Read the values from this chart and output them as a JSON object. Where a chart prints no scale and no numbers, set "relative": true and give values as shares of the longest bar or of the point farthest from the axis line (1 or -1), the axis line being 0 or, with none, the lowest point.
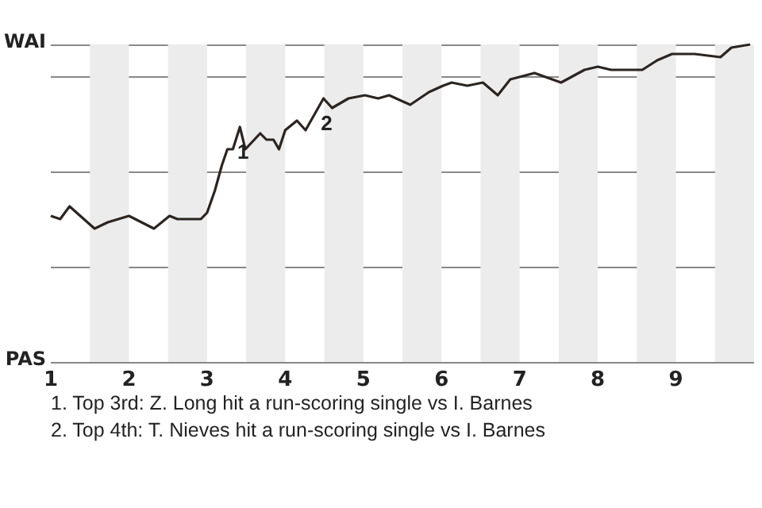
{
  "chart_data": {
    "type": "line",
    "relative": true,
    "x": [
      1.0,
      1.12,
      1.24,
      1.56,
      1.73,
      2.0,
      2.32,
      2.52,
      2.62,
      2.92,
      3.0,
      3.1,
      3.19,
      3.26,
      3.33,
      3.42,
      3.49,
      3.68,
      3.76,
      3.85,
      3.92,
      4.0,
      4.15,
      4.26,
      4.49,
      4.6,
      4.74,
      4.81,
      5.02,
      5.19,
      5.33,
      5.6,
      5.84,
      6.02,
      6.13,
      6.33,
      6.53,
      6.72,
      6.88,
      7.19,
      7.53,
      7.83,
      8.0,
      8.17,
      8.57,
      8.76,
      8.95,
      9.24,
      9.57,
      9.71,
      9.95
    ],
    "series": [
      {
        "color": "#2b2522",
        "values": [
          0.46,
          0.45,
          0.49,
          0.42,
          0.44,
          0.46,
          0.42,
          0.46,
          0.45,
          0.45,
          0.47,
          0.54,
          0.62,
          0.67,
          0.67,
          0.74,
          0.67,
          0.72,
          0.7,
          0.7,
          0.67,
          0.73,
          0.76,
          0.73,
          0.83,
          0.8,
          0.82,
          0.83,
          0.84,
          0.83,
          0.84,
          0.81,
          0.85,
          0.87,
          0.88,
          0.87,
          0.88,
          0.84,
          0.89,
          0.91,
          0.88,
          0.92,
          0.93,
          0.92,
          0.92,
          0.95,
          0.97,
          0.97,
          0.96,
          0.99,
          1
        ]
      }
    ],
    "xlim": [
      1,
      10
    ],
    "xticks": [
      1,
      2,
      3,
      4,
      5,
      6,
      7,
      8,
      9
    ],
    "grid": "y",
    "bands": [
      {
        "axis": "x",
        "from": 1.5,
        "to": 2,
        "color": "#ececec"
      },
      {
        "axis": "x",
        "from": 2.5,
        "to": 3,
        "color": "#ececec"
      },
      {
        "axis": "x",
        "from": 3.5,
        "to": 4,
        "color": "#ececec"
      },
      {
        "axis": "x",
        "from": 4.5,
        "to": 5,
        "color": "#ececec"
      },
      {
        "axis": "x",
        "from": 5.5,
        "to": 6,
        "color": "#ececec"
      },
      {
        "axis": "x",
        "from": 6.5,
        "to": 7,
        "color": "#ececec"
      },
      {
        "axis": "x",
        "from": 7.5,
        "to": 8,
        "color": "#ececec"
      },
      {
        "axis": "x",
        "from": 8.5,
        "to": 9,
        "color": "#ececec"
      },
      {
        "axis": "x",
        "from": 9.5,
        "to": 10,
        "color": "#ececec"
      }
    ],
    "annotations": [
      "WAI",
      "PAS",
      {
        "text": "1",
        "x": 3.42,
        "y": 0.74
      },
      {
        "text": "2",
        "x": 4.49,
        "y": 0.83
      },
      "1. Top 3rd: Z. Long hit a run-scoring single vs I. Barnes",
      "2. Top 4th: T. Nieves hit a run-scoring single vs I. Barnes"
    ]
  }
}
